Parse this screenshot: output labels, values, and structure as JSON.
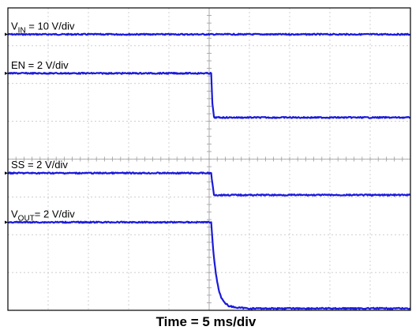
{
  "chart_data": {
    "type": "line",
    "title": "",
    "xlabel": "Time = 5 ms/div",
    "ylabel": "",
    "x_unit": "div",
    "xlim": [
      0,
      10
    ],
    "ylim": [
      0,
      8
    ],
    "grid": true,
    "legend": "none",
    "series": [
      {
        "name": "VIN",
        "label_main": "V",
        "label_sub": "IN",
        "label_rest": " = 10 V/div",
        "color": "#1a1adb",
        "points": [
          [
            0,
            7.3
          ],
          [
            10,
            7.3
          ]
        ]
      },
      {
        "name": "EN",
        "label_main": "EN = 2 V/div",
        "label_sub": "",
        "label_rest": "",
        "color": "#1a1adb",
        "points": [
          [
            0,
            6.27
          ],
          [
            5.05,
            6.27
          ],
          [
            5.08,
            5.47
          ],
          [
            5.12,
            5.1
          ],
          [
            10,
            5.1
          ]
        ]
      },
      {
        "name": "SS",
        "label_main": "SS = 2 V/div",
        "label_sub": "",
        "label_rest": "",
        "color": "#1a1adb",
        "points": [
          [
            0,
            3.63
          ],
          [
            5.05,
            3.63
          ],
          [
            5.08,
            3.35
          ],
          [
            5.12,
            3.05
          ],
          [
            10,
            3.05
          ]
        ]
      },
      {
        "name": "VOUT",
        "label_main": "V",
        "label_sub": "OUT",
        "label_rest": "= 2 V/div",
        "color": "#1a1adb",
        "points": [
          [
            0,
            2.33
          ],
          [
            5.05,
            2.33
          ],
          [
            5.1,
            1.6
          ],
          [
            5.15,
            1.1
          ],
          [
            5.2,
            0.75
          ],
          [
            5.25,
            0.5
          ],
          [
            5.3,
            0.34
          ],
          [
            5.4,
            0.18
          ],
          [
            5.5,
            0.11
          ],
          [
            5.7,
            0.07
          ],
          [
            6.0,
            0.05
          ],
          [
            10,
            0.05
          ]
        ]
      }
    ]
  }
}
